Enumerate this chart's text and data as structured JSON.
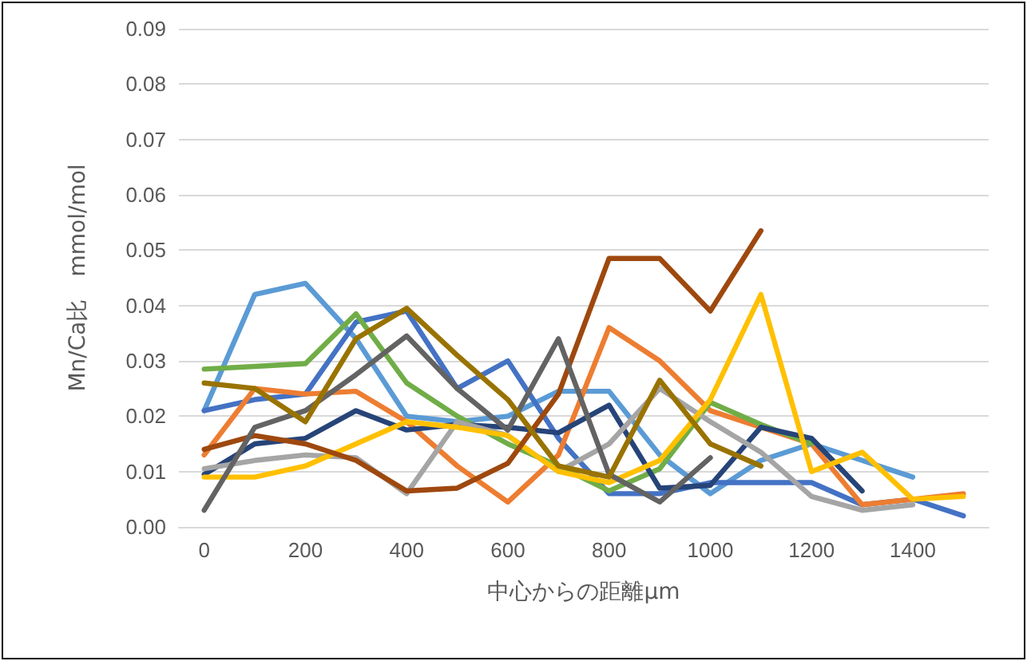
{
  "chart_data": {
    "type": "line",
    "xlabel": "中心からの距離μm",
    "ylabel": "Mn/Ca比　mmol/mol",
    "x": [
      0,
      100,
      200,
      300,
      400,
      500,
      600,
      700,
      800,
      900,
      1000,
      1100,
      1200,
      1300,
      1400,
      1500
    ],
    "xlim": [
      -50,
      1550
    ],
    "xticks": [
      0,
      200,
      400,
      600,
      800,
      1000,
      1200,
      1400
    ],
    "ylim": [
      0,
      0.09
    ],
    "yticks": [
      {
        "value": 0,
        "label": "0.00"
      },
      {
        "value": 0.01,
        "label": "0.01"
      },
      {
        "value": 0.02,
        "label": "0.02"
      },
      {
        "value": 0.03,
        "label": "0.03"
      },
      {
        "value": 0.04,
        "label": "0.04"
      },
      {
        "value": 0.05,
        "label": "0.05"
      },
      {
        "value": 0.06,
        "label": "0.06"
      },
      {
        "value": 0.07,
        "label": "0.07"
      },
      {
        "value": 0.08,
        "label": "0.08"
      },
      {
        "value": 0.09,
        "label": "0.09"
      }
    ],
    "grid": "y",
    "marker": "none",
    "line_style": "solid",
    "series": [
      {
        "color": "#5b9bd5",
        "values": [
          0.021,
          0.042,
          0.044,
          0.034,
          0.02,
          0.019,
          0.02,
          0.0245,
          0.0245,
          0.013,
          0.006,
          0.012,
          0.015,
          0.012,
          0.009,
          null
        ]
      },
      {
        "color": "#4472c4",
        "values": [
          0.021,
          0.023,
          0.024,
          0.037,
          0.039,
          0.025,
          0.03,
          0.016,
          0.006,
          0.006,
          0.008,
          0.008,
          0.008,
          0.004,
          0.005,
          0.002
        ]
      },
      {
        "color": "#ed7d31",
        "values": [
          0.013,
          0.025,
          0.024,
          0.0245,
          0.019,
          0.011,
          0.0045,
          0.013,
          0.036,
          0.03,
          0.021,
          0.018,
          0.015,
          0.004,
          0.005,
          0.006
        ]
      },
      {
        "color": "#70ad47",
        "values": [
          0.0285,
          0.029,
          0.0295,
          0.0385,
          0.026,
          0.02,
          0.015,
          0.011,
          0.0065,
          0.0105,
          0.0225,
          0.0185,
          0.015,
          null,
          null,
          null
        ]
      },
      {
        "color": "#264478",
        "values": [
          0.0095,
          0.015,
          0.016,
          0.021,
          0.0175,
          0.0185,
          0.018,
          0.017,
          0.022,
          0.007,
          0.0075,
          0.018,
          0.016,
          0.0065,
          null,
          null
        ]
      },
      {
        "color": "#a5a5a5",
        "values": [
          0.0105,
          0.012,
          0.013,
          0.0125,
          0.006,
          0.019,
          0.0165,
          0.01,
          0.015,
          0.025,
          0.019,
          0.0135,
          0.0055,
          0.003,
          0.004,
          null
        ]
      },
      {
        "color": "#ffc000",
        "values": [
          0.009,
          0.009,
          0.011,
          0.015,
          0.019,
          0.018,
          0.0165,
          0.01,
          0.008,
          0.012,
          0.023,
          0.042,
          0.01,
          0.0135,
          0.005,
          0.0055
        ]
      },
      {
        "color": "#9e480e",
        "values": [
          0.014,
          0.0165,
          0.015,
          0.012,
          0.0065,
          0.007,
          0.0115,
          0.024,
          0.0485,
          0.0485,
          0.039,
          0.0535,
          null,
          null,
          null,
          null
        ]
      },
      {
        "color": "#636363",
        "values": [
          0.003,
          0.018,
          0.021,
          0.0275,
          0.0345,
          0.025,
          0.0175,
          0.034,
          0.0095,
          0.0045,
          0.0125,
          null,
          null,
          null,
          null,
          null
        ]
      },
      {
        "color": "#997300",
        "values": [
          0.026,
          0.025,
          0.019,
          0.034,
          0.0395,
          0.031,
          0.023,
          0.011,
          0.009,
          0.0265,
          0.015,
          0.011,
          null,
          null,
          null,
          null
        ]
      }
    ]
  }
}
